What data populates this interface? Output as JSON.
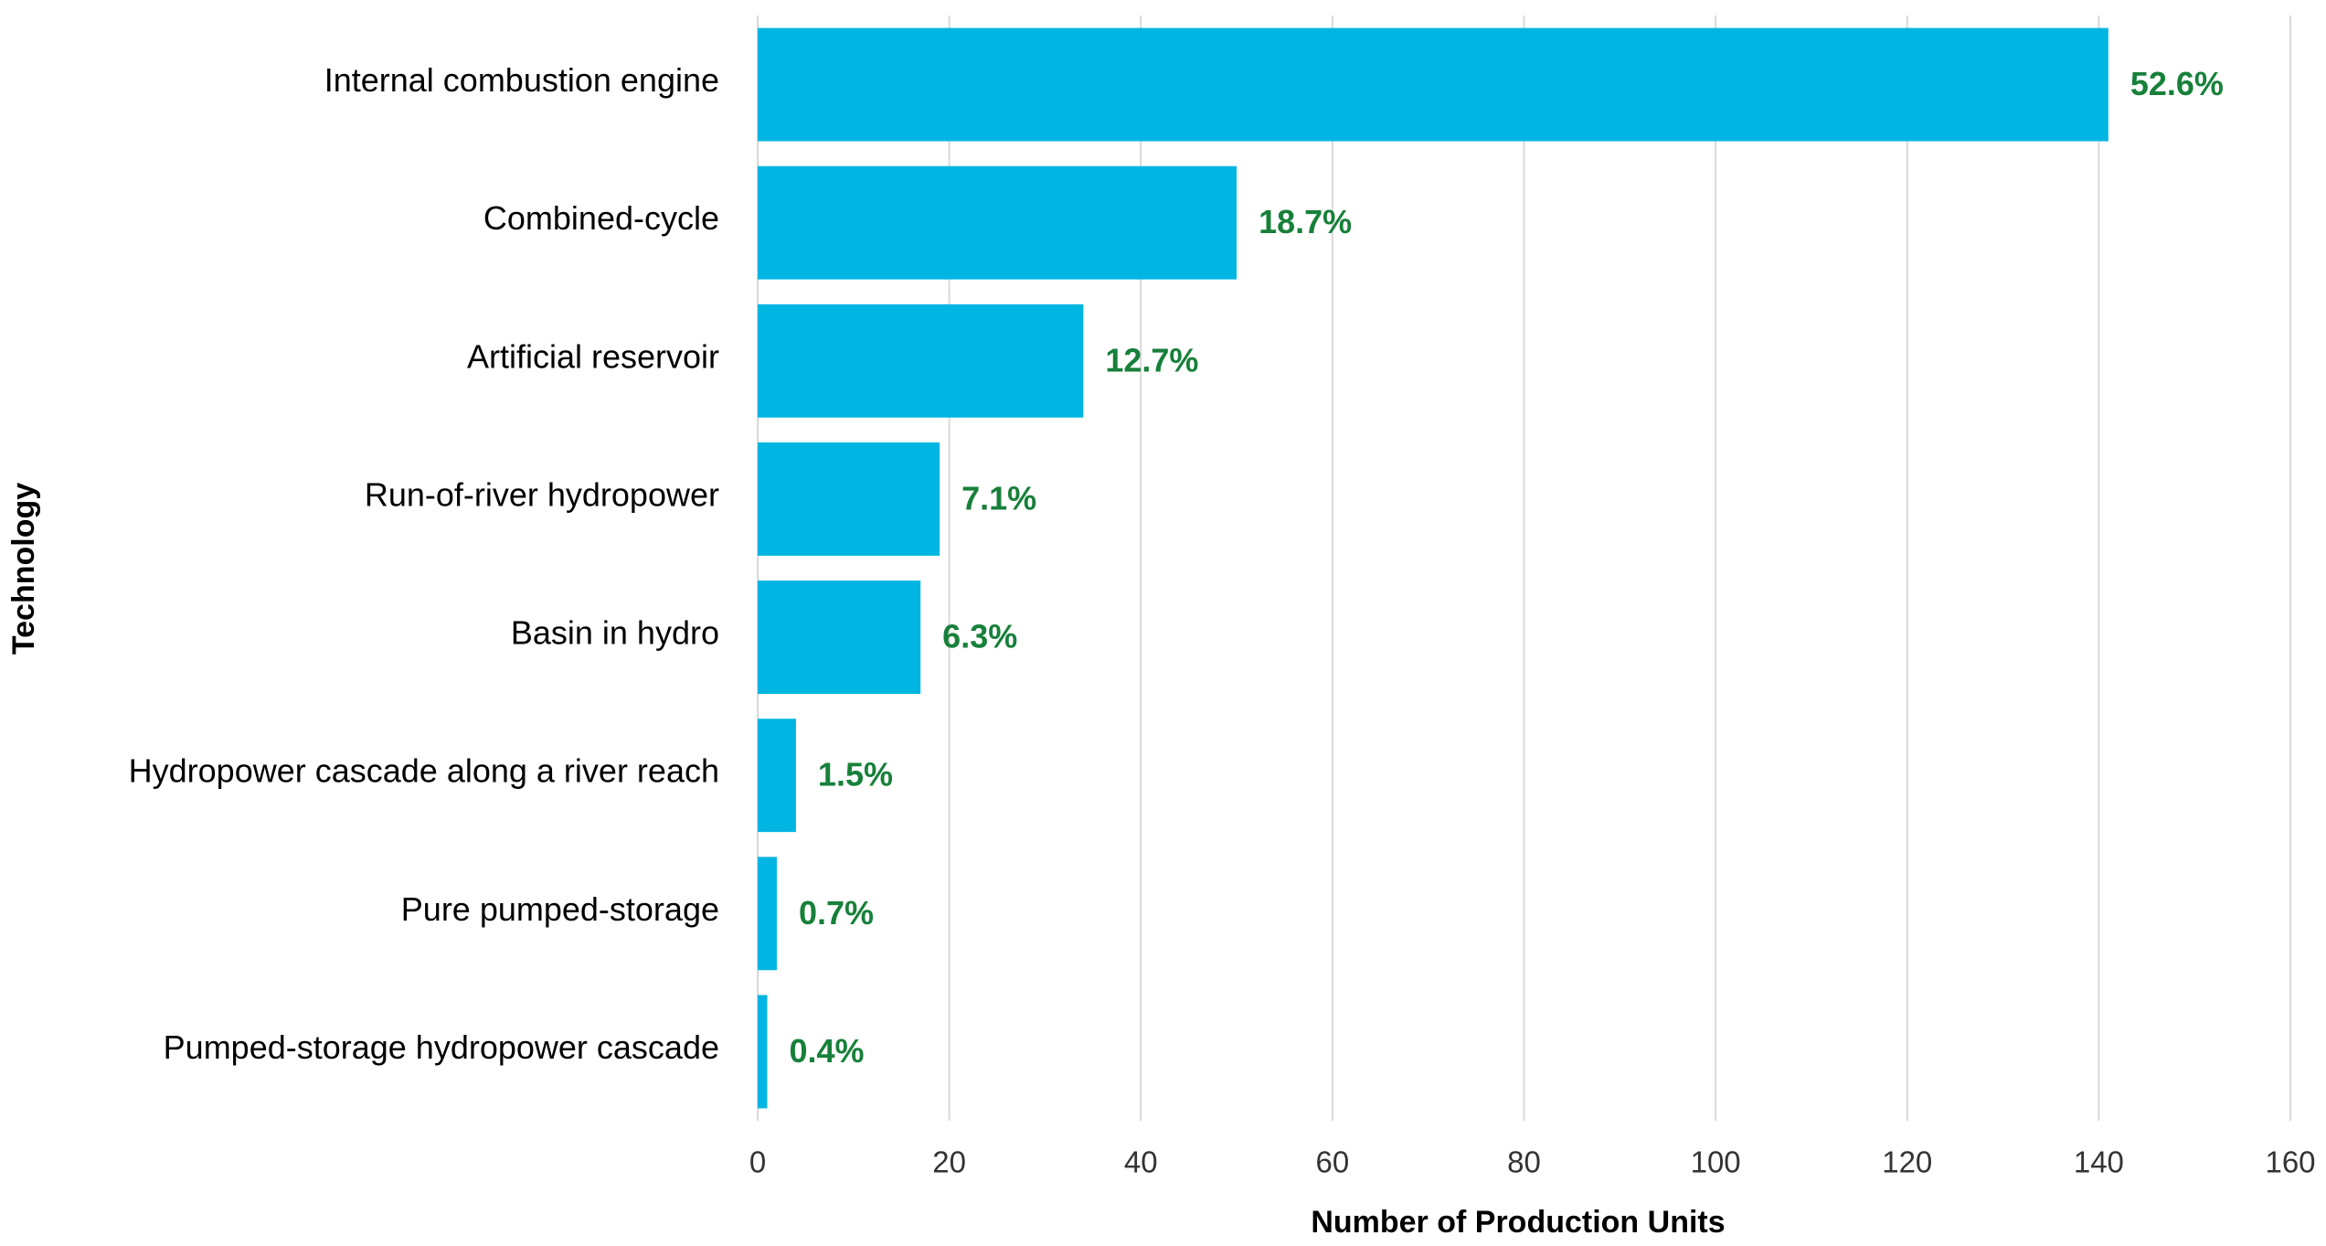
{
  "chart_data": {
    "type": "bar",
    "orientation": "horizontal",
    "x_label": "Number of Production Units",
    "y_label": "Technology",
    "categories": [
      "Internal combustion engine",
      "Combined-cycle",
      "Artificial reservoir",
      "Run-of-river hydropower",
      "Basin in hydro",
      "Hydropower cascade along a river reach",
      "Pure pumped-storage",
      "Pumped-storage hydropower cascade"
    ],
    "values": [
      141,
      50,
      34,
      19,
      17,
      4,
      2,
      1
    ],
    "share_labels": [
      "52.6%",
      "18.7%",
      "12.7%",
      "7.1%",
      "6.3%",
      "1.5%",
      "0.7%",
      "0.4%"
    ],
    "color": "#00b5e2",
    "label_color": "#17803a",
    "xlim": [
      0,
      160
    ],
    "xticks": [
      0,
      20,
      40,
      60,
      80,
      100,
      120,
      140,
      160
    ],
    "grid": true
  }
}
